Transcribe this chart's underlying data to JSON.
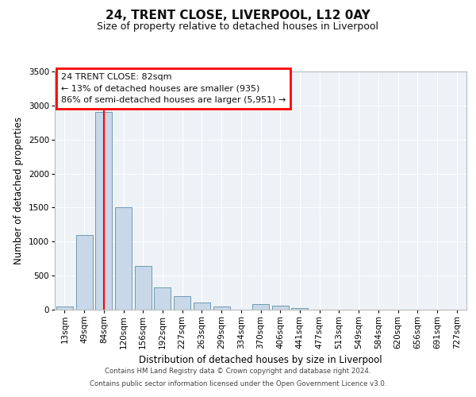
{
  "title": "24, TRENT CLOSE, LIVERPOOL, L12 0AY",
  "subtitle": "Size of property relative to detached houses in Liverpool",
  "xlabel": "Distribution of detached houses by size in Liverpool",
  "ylabel": "Number of detached properties",
  "categories": [
    "13sqm",
    "49sqm",
    "84sqm",
    "120sqm",
    "156sqm",
    "192sqm",
    "227sqm",
    "263sqm",
    "299sqm",
    "334sqm",
    "370sqm",
    "406sqm",
    "441sqm",
    "477sqm",
    "513sqm",
    "549sqm",
    "584sqm",
    "620sqm",
    "656sqm",
    "691sqm",
    "727sqm"
  ],
  "values": [
    50,
    1100,
    2900,
    1500,
    640,
    330,
    200,
    100,
    50,
    0,
    80,
    60,
    20,
    5,
    5,
    5,
    0,
    0,
    5,
    0,
    5
  ],
  "bar_color": "#c8d8e8",
  "bar_edge_color": "#7099b0",
  "vline_x": 2,
  "vline_color": "red",
  "ylim": [
    0,
    3500
  ],
  "yticks": [
    0,
    500,
    1000,
    1500,
    2000,
    2500,
    3000,
    3500
  ],
  "annotation_box_text": "24 TRENT CLOSE: 82sqm\n← 13% of detached houses are smaller (935)\n86% of semi-detached houses are larger (5,951) →",
  "footer_line1": "Contains HM Land Registry data © Crown copyright and database right 2024.",
  "footer_line2": "Contains public sector information licensed under the Open Government Licence v3.0.",
  "title_fontsize": 11,
  "subtitle_fontsize": 9,
  "axis_label_fontsize": 8.5,
  "tick_fontsize": 7.5,
  "background_color": "#edf2f7"
}
